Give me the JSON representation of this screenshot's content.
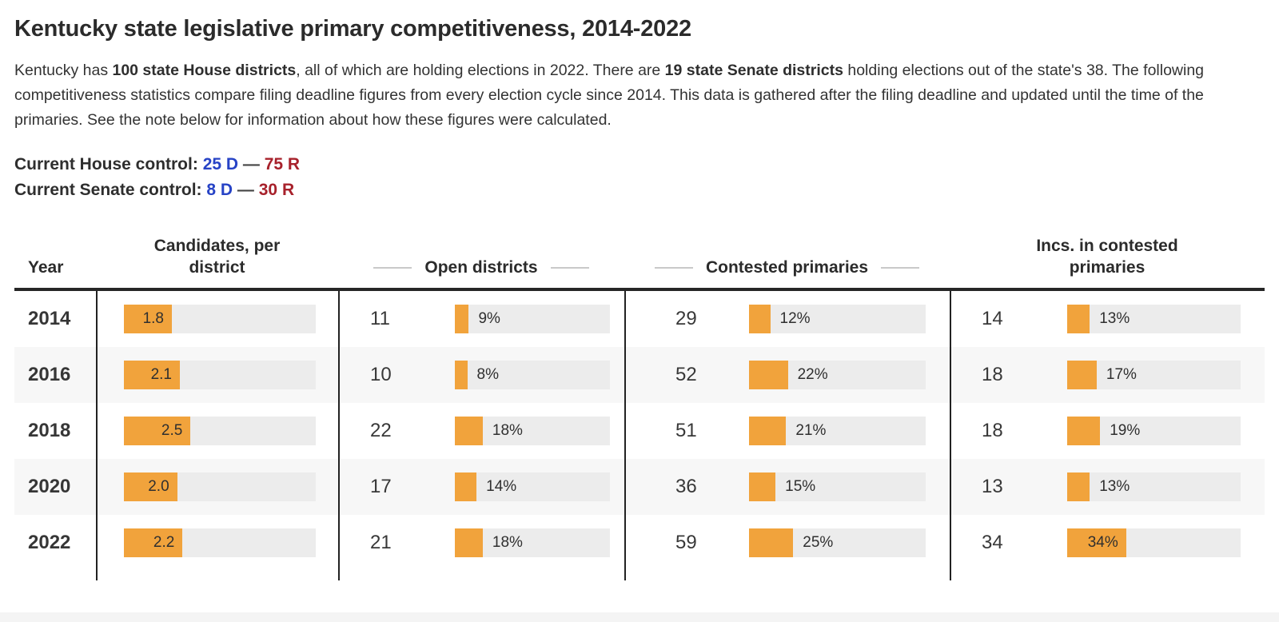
{
  "title": "Kentucky state legislative primary competitiveness, 2014-2022",
  "intro": {
    "part1": "Kentucky has ",
    "bold1": "100 state House districts",
    "part2": ", all of which are holding elections in 2022. There are ",
    "bold2": "19 state Senate districts",
    "part3": " holding elections out of the state's 38. The following competitiveness statistics compare filing deadline figures from every election cycle since 2014. This data is gathered after the filing deadline and updated until the time of the primaries. See the note below for information about how these figures were calculated."
  },
  "controls": {
    "house_label": "Current House control:",
    "house_dem": "25 D",
    "separator": "—",
    "house_rep": "75 R",
    "senate_label": "Current Senate control:",
    "senate_dem": "8 D",
    "senate_rep": "30 R"
  },
  "colors": {
    "dem_blue": "#2743c6",
    "rep_red": "#a7212b",
    "bar_orange": "#f1a33c",
    "bar_track_gray": "#ececec",
    "row_alt_gray": "#f7f7f7"
  },
  "chart_data": {
    "type": "table",
    "title": "Kentucky state legislative primary competitiveness, 2014-2022",
    "columns": [
      "Year",
      "Candidates, per district",
      "Open districts",
      "Contested primaries",
      "Incs. in contested primaries"
    ],
    "candidates_bar_max": 7.2,
    "pct_bar_max": 100,
    "rows": [
      {
        "year": "2014",
        "candidates": {
          "value": 1.8,
          "label": "1.8"
        },
        "open": {
          "count": "11",
          "pct": 9,
          "label": "9%"
        },
        "contested": {
          "count": "29",
          "pct": 12,
          "label": "12%"
        },
        "incs": {
          "count": "14",
          "pct": 13,
          "label": "13%"
        }
      },
      {
        "year": "2016",
        "candidates": {
          "value": 2.1,
          "label": "2.1"
        },
        "open": {
          "count": "10",
          "pct": 8,
          "label": "8%"
        },
        "contested": {
          "count": "52",
          "pct": 22,
          "label": "22%"
        },
        "incs": {
          "count": "18",
          "pct": 17,
          "label": "17%"
        }
      },
      {
        "year": "2018",
        "candidates": {
          "value": 2.5,
          "label": "2.5"
        },
        "open": {
          "count": "22",
          "pct": 18,
          "label": "18%"
        },
        "contested": {
          "count": "51",
          "pct": 21,
          "label": "21%"
        },
        "incs": {
          "count": "18",
          "pct": 19,
          "label": "19%"
        }
      },
      {
        "year": "2020",
        "candidates": {
          "value": 2.0,
          "label": "2.0"
        },
        "open": {
          "count": "17",
          "pct": 14,
          "label": "14%"
        },
        "contested": {
          "count": "36",
          "pct": 15,
          "label": "15%"
        },
        "incs": {
          "count": "13",
          "pct": 13,
          "label": "13%"
        }
      },
      {
        "year": "2022",
        "candidates": {
          "value": 2.2,
          "label": "2.2"
        },
        "open": {
          "count": "21",
          "pct": 18,
          "label": "18%"
        },
        "contested": {
          "count": "59",
          "pct": 25,
          "label": "25%"
        },
        "incs": {
          "count": "34",
          "pct": 34,
          "label": "34%"
        }
      }
    ]
  }
}
